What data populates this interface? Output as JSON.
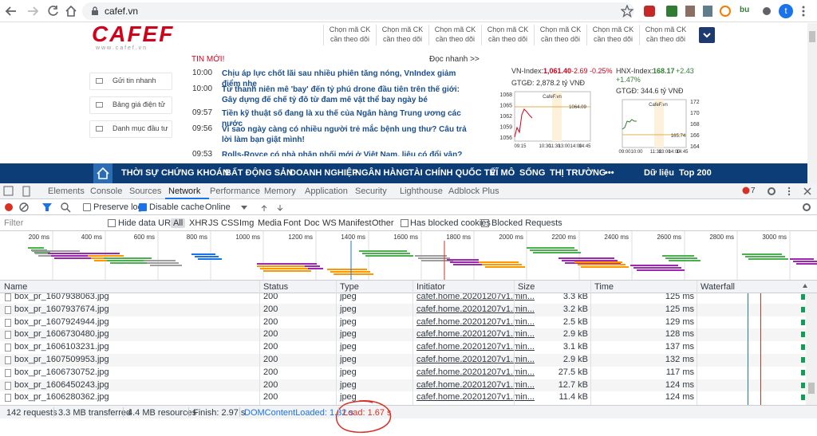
{
  "browser": {
    "url": "cafef.vn",
    "avatar": "t",
    "extension": "bu"
  },
  "site": {
    "logo": "CAFEF",
    "logo_sub": "w w w . c a f e f . v n",
    "watch_boxes": [
      {
        "line1": "Chọn mã CK",
        "line2": "cần theo dõi"
      },
      {
        "line1": "Chọn mã CK",
        "line2": "cần theo dõi"
      },
      {
        "line1": "Chọn mã CK",
        "line2": "cần theo dõi"
      },
      {
        "line1": "Chọn mã CK",
        "line2": "cần theo dõi"
      },
      {
        "line1": "Chọn mã CK",
        "line2": "cần theo dõi"
      },
      {
        "line1": "Chọn mã CK",
        "line2": "cần theo dõi"
      },
      {
        "line1": "Chọn mã CK",
        "line2": "cần theo dõi"
      }
    ],
    "side_menu": [
      "Gửi tin nhanh",
      "Bảng giá điện tử",
      "Danh mục đầu tư"
    ],
    "news": {
      "heading": "TIN MỚI!",
      "quick_read": "Đọc nhanh >>",
      "items": [
        {
          "time": "10:00",
          "title": "Chịu áp lực chốt lãi sau nhiều phiên tăng nóng, VnIndex giảm điểm nhẹ"
        },
        {
          "time": "10:00",
          "title": "Từ thanh niên mê 'bay' đến tỷ phú drone đầu tiên trên thế giới: Gây dựng đế chế tỷ đô từ đam mê vật thể bay ngày bé"
        },
        {
          "time": "09:57",
          "title": "Tiền kỹ thuật số đang là xu thế của Ngân hàng Trung ương các nước"
        },
        {
          "time": "09:56",
          "title": "Vì sao ngày càng có nhiều người trẻ mắc bệnh ung thư? Câu trả lời làm bạn giật mình!"
        },
        {
          "time": "09:53",
          "title": "Rolls-Royce có nhà phân phối mới ở Việt Nam, liệu có đổi vận?"
        }
      ]
    },
    "vn_index": {
      "label": "VN-Index:",
      "value": "1,061.40",
      "change": "-2.69 -0.25%",
      "volume": "GTGĐ: 2,878.2 tỷ VNĐ",
      "chart_brand": "CafeF.vn",
      "chart_ref": "1064.09",
      "yticks": [
        "1068",
        "1065",
        "1062",
        "1059",
        "1056"
      ],
      "xticks": [
        "09:15",
        "10:30",
        "11:30",
        "13:00",
        "14:00",
        "14:45"
      ]
    },
    "hnx_index": {
      "label": "HNX-Index:",
      "value": "168.17",
      "change": "+2.43 +1.47%",
      "volume": "GTGĐ: 344.6 tỷ VNĐ",
      "chart_brand": "CafeF.vn",
      "chart_ref": "165.74",
      "yticks": [
        "172",
        "170",
        "168",
        "166",
        "164"
      ],
      "xticks": [
        "09:00",
        "10:00",
        "11:30",
        "13:00",
        "14:00",
        "14:45"
      ]
    },
    "nav": [
      "THỜI SỰ",
      "CHỨNG KHOÁN",
      "BẤT ĐỘNG SẢN",
      "DOANH NGHIỆP",
      "NGÂN HÀNG",
      "TÀI CHÍNH QUỐC TẾ",
      "VĨ MÔ",
      "SỐNG",
      "THỊ TRƯỜNG",
      "•••",
      "Dữ liệu",
      "Top 200"
    ]
  },
  "devtools": {
    "tabs": [
      "Elements",
      "Console",
      "Sources",
      "Network",
      "Performance",
      "Memory",
      "Application",
      "Security",
      "Lighthouse",
      "Adblock Plus"
    ],
    "error_count": "7",
    "toolbar": {
      "preserve_log": "Preserve log",
      "disable_cache": "Disable cache",
      "throttling": "Online"
    },
    "filter": {
      "placeholder": "Filter",
      "hide_data_urls": "Hide data URLs",
      "types": [
        "All",
        "XHR",
        "JS",
        "CSS",
        "Img",
        "Media",
        "Font",
        "Doc",
        "WS",
        "Manifest",
        "Other"
      ],
      "has_blocked_cookies": "Has blocked cookies",
      "blocked_requests": "Blocked Requests"
    },
    "overview_ticks": [
      "200 ms",
      "400 ms",
      "600 ms",
      "800 ms",
      "1000 ms",
      "1200 ms",
      "1400 ms",
      "1600 ms",
      "1800 ms",
      "2000 ms",
      "2200 ms",
      "2400 ms",
      "2600 ms",
      "2800 ms",
      "3000 ms"
    ],
    "table": {
      "columns": [
        "Name",
        "Status",
        "Type",
        "Initiator",
        "Size",
        "Time",
        "Waterfall"
      ],
      "rows": [
        [
          "box_pr_1607938063.jpg",
          "200",
          "jpeg",
          "cafef.home.20201207v1.min...",
          "3.3 kB",
          "125 ms"
        ],
        [
          "box_pr_1607937674.jpg",
          "200",
          "jpeg",
          "cafef.home.20201207v1.min...",
          "3.2 kB",
          "125 ms"
        ],
        [
          "box_pr_1607924944.jpg",
          "200",
          "jpeg",
          "cafef.home.20201207v1.min...",
          "2.5 kB",
          "129 ms"
        ],
        [
          "box_pr_1606730480.jpg",
          "200",
          "jpeg",
          "cafef.home.20201207v1.min...",
          "2.9 kB",
          "128 ms"
        ],
        [
          "box_pr_1606103231.jpg",
          "200",
          "jpeg",
          "cafef.home.20201207v1.min...",
          "3.1 kB",
          "137 ms"
        ],
        [
          "box_pr_1607509953.jpg",
          "200",
          "jpeg",
          "cafef.home.20201207v1.min...",
          "2.9 kB",
          "132 ms"
        ],
        [
          "box_pr_1606730752.jpg",
          "200",
          "jpeg",
          "cafef.home.20201207v1.min...",
          "27.5 kB",
          "117 ms"
        ],
        [
          "box_pr_1606450243.jpg",
          "200",
          "jpeg",
          "cafef.home.20201207v1.min...",
          "12.7 kB",
          "124 ms"
        ],
        [
          "box_pr_1606280362.jpg",
          "200",
          "jpeg",
          "cafef.home.20201207v1.min...",
          "11.4 kB",
          "124 ms"
        ]
      ]
    },
    "status": [
      "142 requests",
      "3.3 MB transferred",
      "4.4 MB resources",
      "Finish: 2.97 s",
      "DOMContentLoaded: 1.32 s",
      "Load: 1.67 s"
    ]
  }
}
